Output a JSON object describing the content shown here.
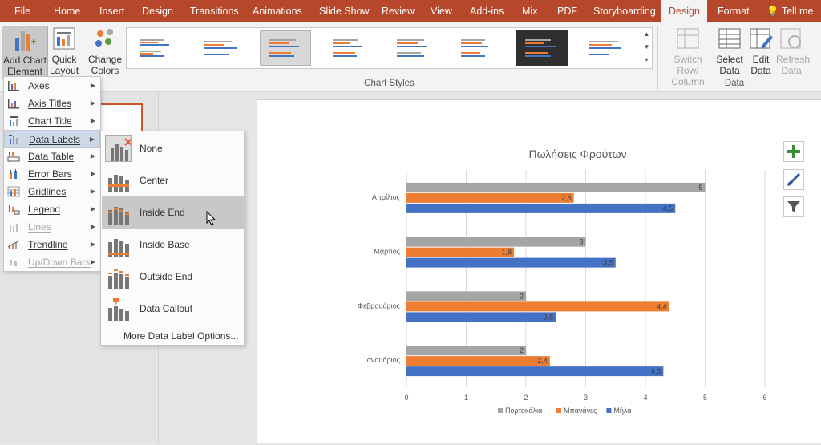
{
  "tabs": [
    {
      "label": "File",
      "active": false
    },
    {
      "label": "Home",
      "active": false
    },
    {
      "label": "Insert",
      "active": false
    },
    {
      "label": "Design",
      "active": false
    },
    {
      "label": "Transitions",
      "active": false
    },
    {
      "label": "Animations",
      "active": false
    },
    {
      "label": "Slide Show",
      "active": false
    },
    {
      "label": "Review",
      "active": false
    },
    {
      "label": "View",
      "active": false
    },
    {
      "label": "Add-ins",
      "active": false
    },
    {
      "label": "Mix",
      "active": false
    },
    {
      "label": "PDF",
      "active": false
    },
    {
      "label": "Storyboarding",
      "active": false
    },
    {
      "label": "Design",
      "active": true
    },
    {
      "label": "Format",
      "active": false
    },
    {
      "label": "Tell me",
      "active": false
    }
  ],
  "ribbon": {
    "add_chart_element": "Add Chart\nElement",
    "quick_layout": "Quick\nLayout",
    "change_colors": "Change\nColors",
    "chart_styles_label": "Chart Styles",
    "switch_row_column": "Switch Row/\nColumn",
    "select_data": "Select\nData",
    "edit_data": "Edit\nData",
    "refresh_data": "Refresh\nData",
    "data_group_label": "Data"
  },
  "menu": {
    "items": [
      {
        "label": "Axes",
        "icon": "axes-icon",
        "enabled": true
      },
      {
        "label": "Axis Titles",
        "icon": "axis-titles-icon",
        "enabled": true
      },
      {
        "label": "Chart Title",
        "icon": "chart-title-icon",
        "enabled": true
      },
      {
        "label": "Data Labels",
        "icon": "data-labels-icon",
        "enabled": true,
        "hover": true
      },
      {
        "label": "Data Table",
        "icon": "data-table-icon",
        "enabled": true
      },
      {
        "label": "Error Bars",
        "icon": "error-bars-icon",
        "enabled": true
      },
      {
        "label": "Gridlines",
        "icon": "gridlines-icon",
        "enabled": true
      },
      {
        "label": "Legend",
        "icon": "legend-icon",
        "enabled": true
      },
      {
        "label": "Lines",
        "icon": "lines-icon",
        "enabled": false
      },
      {
        "label": "Trendline",
        "icon": "trendline-icon",
        "enabled": true
      },
      {
        "label": "Up/Down Bars",
        "icon": "up-down-bars-icon",
        "enabled": false
      }
    ]
  },
  "submenu": {
    "items": [
      {
        "label": "None",
        "icon": "data-labels-none-icon"
      },
      {
        "label": "Center",
        "icon": "data-labels-center-icon"
      },
      {
        "label": "Inside End",
        "icon": "data-labels-inside-end-icon"
      },
      {
        "label": "Inside Base",
        "icon": "data-labels-inside-base-icon"
      },
      {
        "label": "Outside End",
        "icon": "data-labels-outside-end-icon"
      },
      {
        "label": "Data Callout",
        "icon": "data-labels-callout-icon"
      }
    ],
    "more": "More Data Label Options..."
  },
  "colors": {
    "ribbon": "#b7472a",
    "gray": "#a5a5a5",
    "orange": "#ed7d31",
    "blue": "#4472c4"
  },
  "chart_data": {
    "type": "bar",
    "orientation": "horizontal",
    "title": "Πωλήσεις Φρούτων",
    "categories": [
      "Ιανουάριος",
      "Φεβρουάριος",
      "Μάρτιος",
      "Απρίλιος"
    ],
    "series": [
      {
        "name": "Πορτοκάλια",
        "values": [
          2,
          2,
          3,
          5
        ],
        "labels": [
          "2",
          "2",
          "3",
          "5"
        ],
        "color": "#a5a5a5"
      },
      {
        "name": "Μπανάνες",
        "values": [
          2.4,
          4.4,
          1.8,
          2.8
        ],
        "labels": [
          "2,4",
          "4,4",
          "1,8",
          "2,8"
        ],
        "color": "#ed7d31"
      },
      {
        "name": "Μήλα",
        "values": [
          4.3,
          2.5,
          3.5,
          4.5
        ],
        "labels": [
          "4,3",
          "2,5",
          "3,5",
          "4,5"
        ],
        "color": "#4472c4"
      }
    ],
    "xlim": [
      0,
      6
    ],
    "xticks": [
      "0",
      "1",
      "2",
      "3",
      "4",
      "5",
      "6"
    ],
    "grid": true,
    "legend": "bottom"
  }
}
